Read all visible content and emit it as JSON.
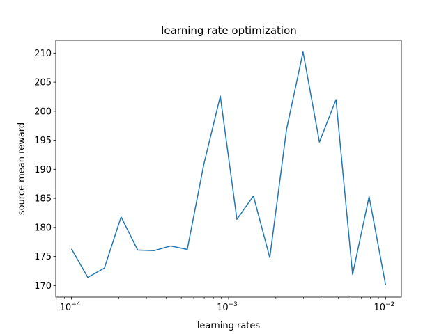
{
  "chart_data": {
    "type": "line",
    "title": "learning rate optimization",
    "xlabel": "learning rates",
    "ylabel": "source mean reward",
    "x_scale": "log",
    "xlim": [
      7.94e-05,
      0.0126
    ],
    "ylim": [
      168.0,
      212.2
    ],
    "grid": false,
    "x_ticks": [
      {
        "value": 0.0001,
        "base": "10",
        "exp": "−4"
      },
      {
        "value": 0.001,
        "base": "10",
        "exp": "−3"
      },
      {
        "value": 0.01,
        "base": "10",
        "exp": "−2"
      }
    ],
    "y_ticks": [
      {
        "value": 170,
        "label": "170"
      },
      {
        "value": 175,
        "label": "175"
      },
      {
        "value": 180,
        "label": "180"
      },
      {
        "value": 185,
        "label": "185"
      },
      {
        "value": 190,
        "label": "190"
      },
      {
        "value": 195,
        "label": "195"
      },
      {
        "value": 200,
        "label": "200"
      },
      {
        "value": 205,
        "label": "205"
      },
      {
        "value": 210,
        "label": "210"
      }
    ],
    "series": [
      {
        "color": "#1f77b4",
        "x": [
          0.0001,
          0.000127,
          0.000162,
          0.000207,
          0.000264,
          0.000336,
          0.000428,
          0.000546,
          0.000695,
          0.000886,
          0.00113,
          0.00144,
          0.00183,
          0.00234,
          0.00298,
          0.00379,
          0.00483,
          0.00616,
          0.00785,
          0.01
        ],
        "y": [
          176.3,
          171.4,
          173.0,
          181.8,
          176.1,
          176.0,
          176.8,
          176.2,
          190.8,
          202.6,
          181.4,
          185.4,
          174.8,
          196.9,
          210.2,
          194.7,
          202.0,
          171.9,
          185.3,
          170.1
        ]
      }
    ]
  }
}
